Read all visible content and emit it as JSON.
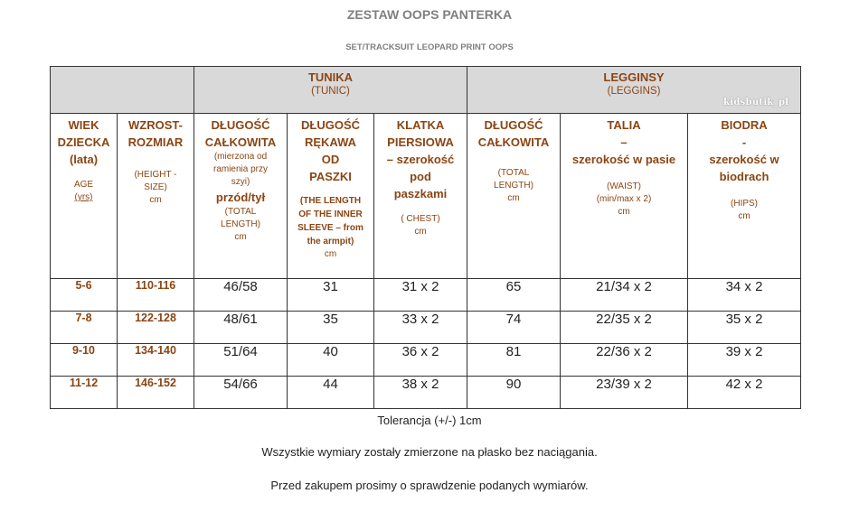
{
  "title": "ZESTAW OOPS PANTERKA",
  "subtitle": "SET/TRACKSUIT  LEOPARD PRINT OOPS",
  "watermark": "kidsbutik_pl",
  "groups": {
    "tunic": {
      "label": "TUNIKA",
      "en": "(TUNIC)"
    },
    "leggings": {
      "label": "LEGGINSY",
      "en": "(LEGGINS)"
    }
  },
  "columns": {
    "age": {
      "l1": "WIEK",
      "l2": "DZIECKA",
      "l3": "(lata)",
      "en1": "AGE",
      "en2": "(yrs)"
    },
    "height": {
      "l1": "WZROST-",
      "l2": "ROZMIAR",
      "en1": "(HEIGHT -",
      "en2": "SIZE)",
      "unit": "cm"
    },
    "tunic_length": {
      "l1": "DŁUGOŚĆ",
      "l2": "CAŁKOWITA",
      "note1": "(mierzona od",
      "note2": "ramienia przy",
      "note3": "szyi)",
      "sub": "przód/tył",
      "en1": "(TOTAL",
      "en2": "LENGTH)",
      "unit": "cm"
    },
    "sleeve": {
      "l1": "DŁUGOŚĆ",
      "l2": "RĘKAWA",
      "l3": "OD",
      "l4": "PASZKI",
      "en1": "(THE LENGTH",
      "en2": "OF THE INNER",
      "en3": "SLEEVE – from",
      "en4": "the armpit)",
      "unit": "cm"
    },
    "chest": {
      "l1": "KLATKA",
      "l2": "PIERSIOWA",
      "l3": "– szerokość",
      "l4": "pod",
      "l5": "paszkami",
      "en1": "( CHEST)",
      "unit": "cm"
    },
    "leg_length": {
      "l1": "DŁUGOŚĆ",
      "l2": "CAŁKOWITA",
      "en1": "(TOTAL",
      "en2": "LENGTH)",
      "unit": "cm"
    },
    "waist": {
      "l1": "TALIA",
      "l2": "–",
      "l3": "szerokość w pasie",
      "en1": "(WAIST)",
      "en2": "(min/max x 2)",
      "unit": "cm"
    },
    "hips": {
      "l1": "BIODRA",
      "l2": "-",
      "l3": "szerokość  w",
      "l4": "biodrach",
      "en1": "(HIPS)",
      "unit": "cm"
    }
  },
  "rows": [
    {
      "age": "5-6",
      "height": "110-116",
      "tunic_length": "46/58",
      "sleeve": "31",
      "chest": "31 x 2",
      "leg_length": "65",
      "waist": "21/34 x 2",
      "hips": "34 x 2"
    },
    {
      "age": "7-8",
      "height": "122-128",
      "tunic_length": "48/61",
      "sleeve": "35",
      "chest": "33 x 2",
      "leg_length": "74",
      "waist": "22/35 x 2",
      "hips": "35 x  2"
    },
    {
      "age": "9-10",
      "height": "134-140",
      "tunic_length": "51/64",
      "sleeve": "40",
      "chest": "36 x 2",
      "leg_length": "81",
      "waist": "22/36 x 2",
      "hips": "39 x 2"
    },
    {
      "age": "11-12",
      "height": "146-152",
      "tunic_length": "54/66",
      "sleeve": "44",
      "chest": "38 x 2",
      "leg_length": "90",
      "waist": "23/39 x 2",
      "hips": "42 x 2"
    }
  ],
  "footer": {
    "tolerance": "Tolerancja (+/-) 1cm",
    "note1": "Wszystkie wymiary zostały zmierzone na płasko bez naciągania.",
    "note2": "Przed zakupem prosimy o sprawdzenie podanych  wymiarów."
  }
}
